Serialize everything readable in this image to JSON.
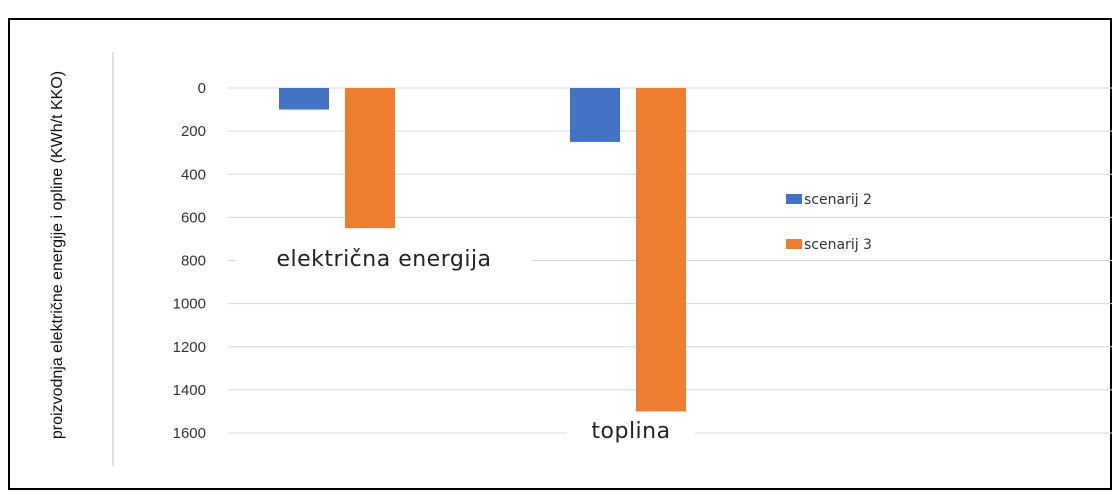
{
  "chart_data": {
    "type": "bar",
    "title": "",
    "xlabel": "",
    "ylabel": "proizvodnja električne energije i opline (KWh/t KKO)",
    "categories": [
      "električna energija",
      "toplina"
    ],
    "series": [
      {
        "name": "scenarij 2",
        "values": [
          100,
          250
        ],
        "color": "#4472C4"
      },
      {
        "name": "scenarij 3",
        "values": [
          650,
          1500
        ],
        "color": "#ED7D31"
      }
    ],
    "ylim": [
      0,
      1600
    ],
    "yticks": [
      "0",
      "200",
      "400",
      "600",
      "800",
      "1000",
      "1200",
      "1400",
      "1600"
    ],
    "y_axis_inverted": true,
    "grid": true,
    "legend_position": "right"
  }
}
